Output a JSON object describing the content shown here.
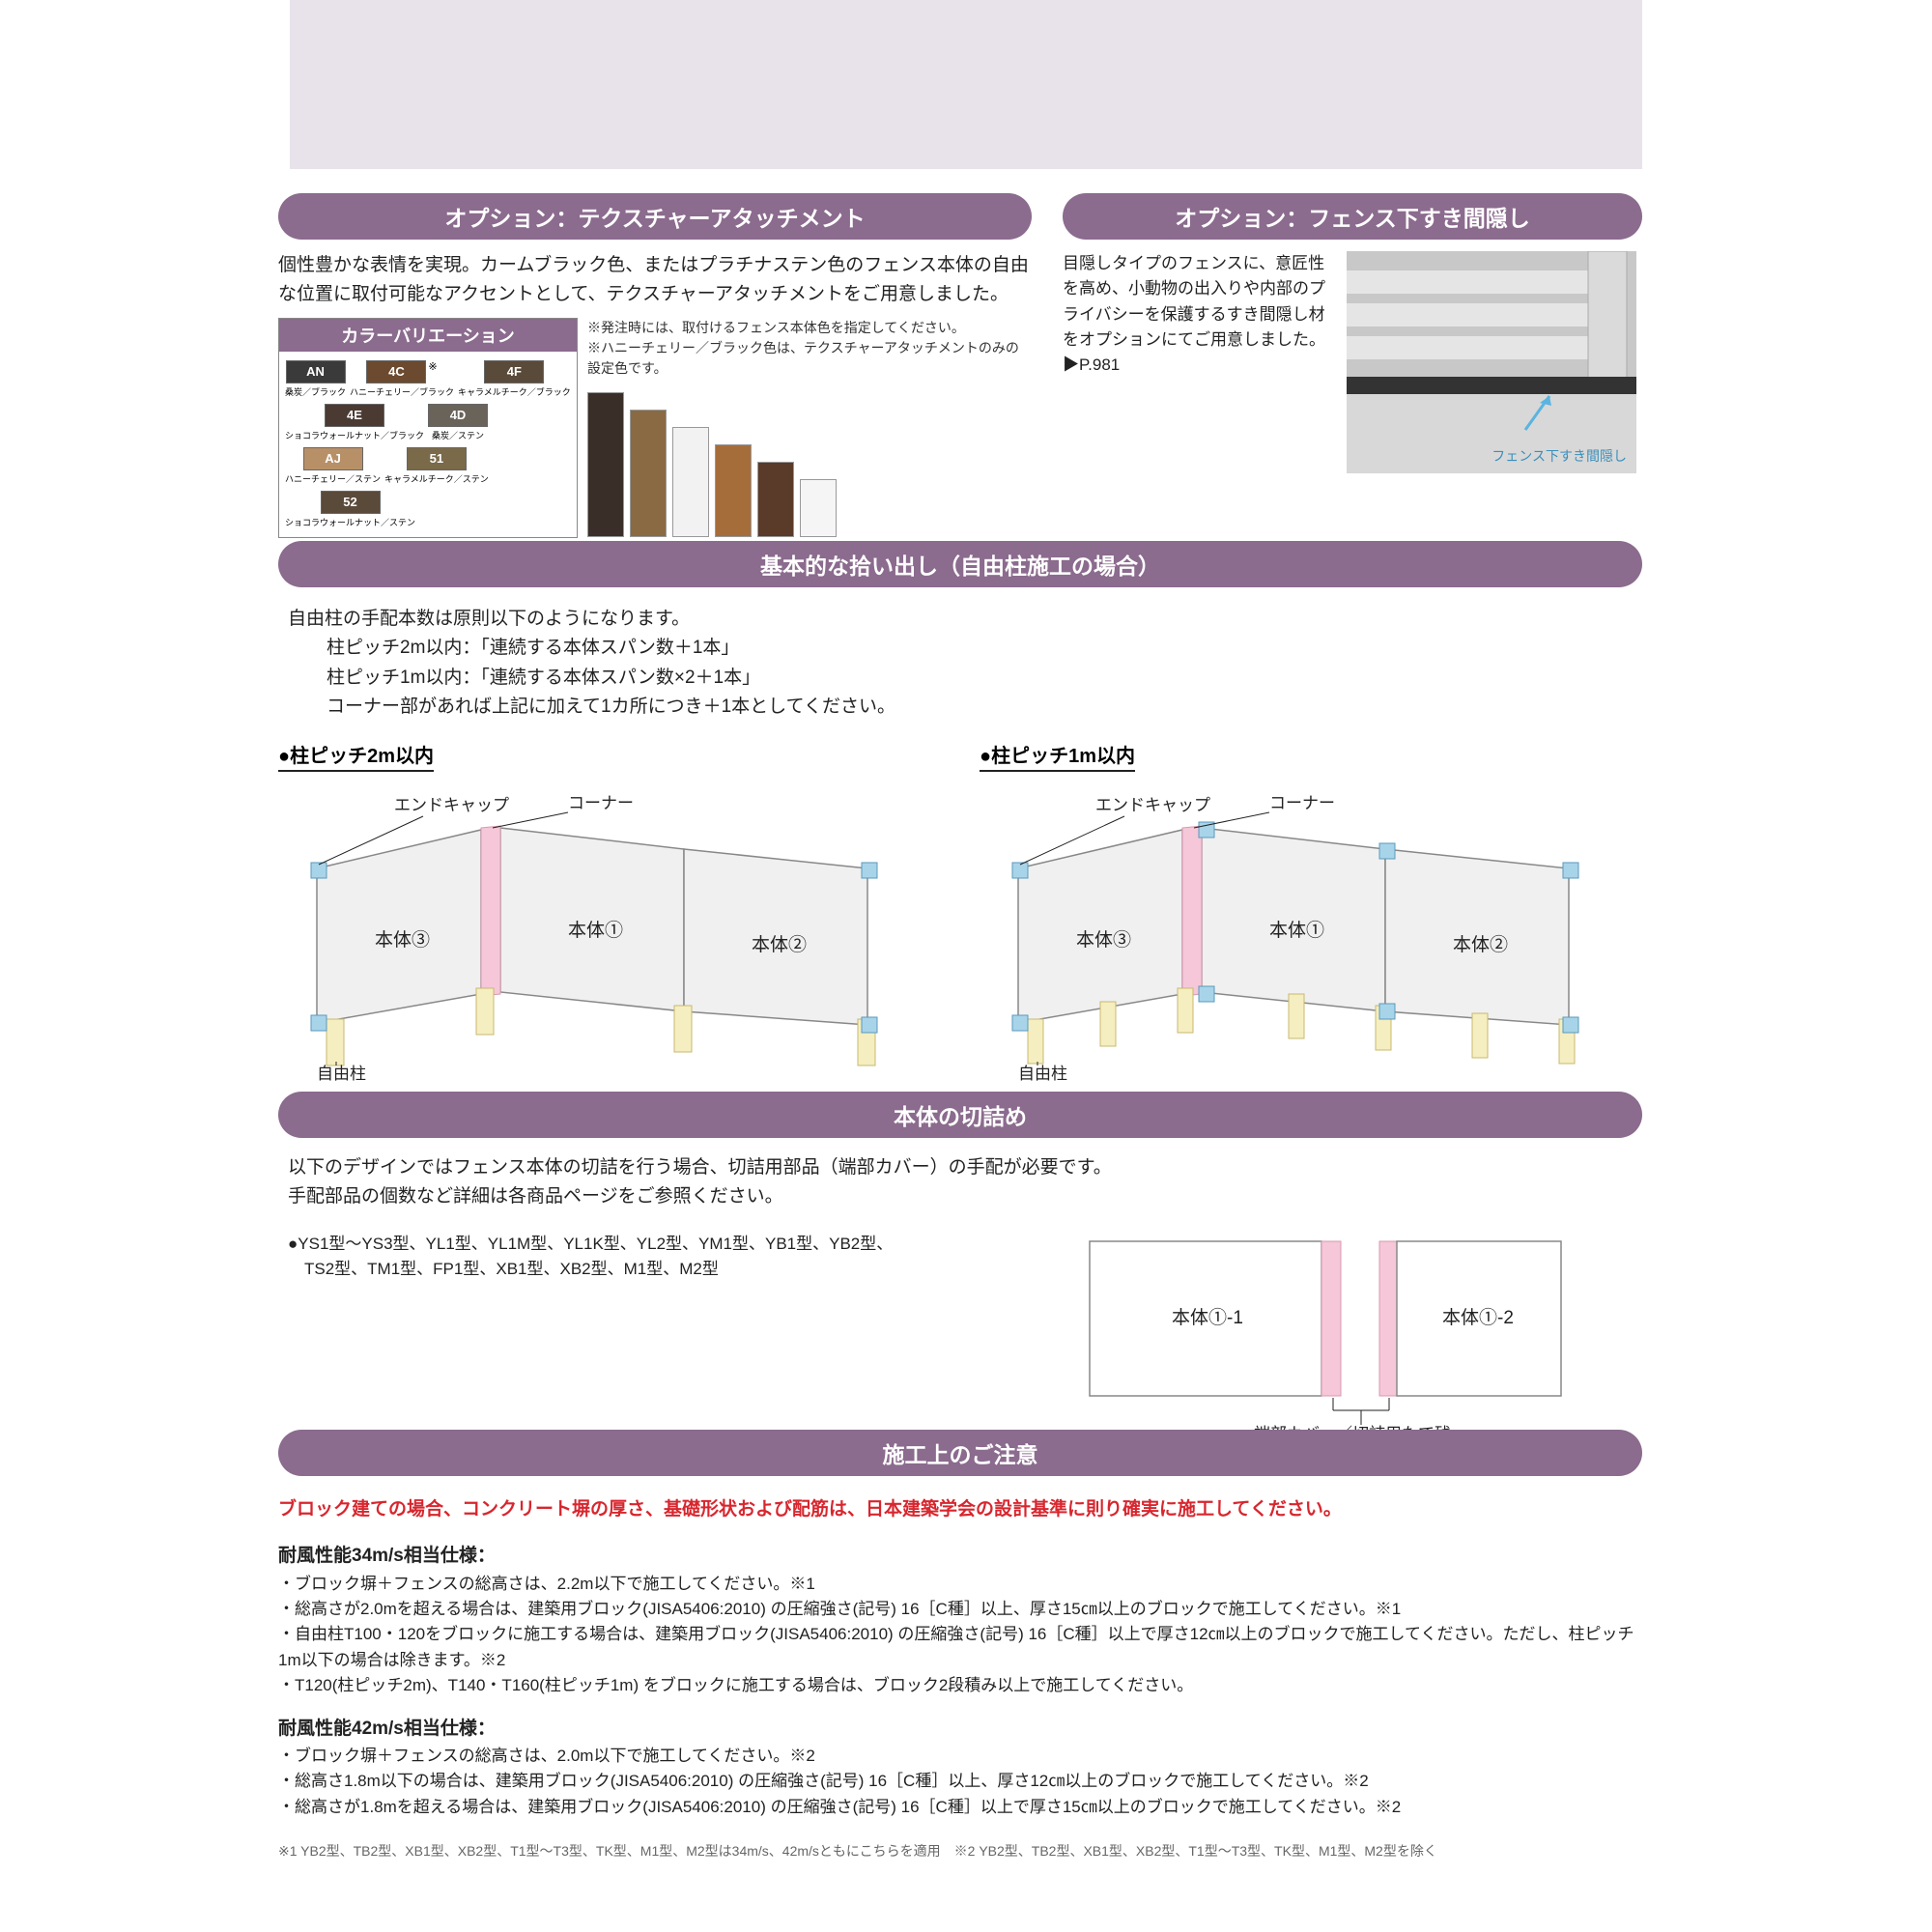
{
  "top_purple": "#e8e2ea",
  "pill_color": "#8b6b8e",
  "option1": {
    "title": "オプション：テクスチャーアタッチメント",
    "intro": "個性豊かな表情を実現。カームブラック色、またはプラチナステン色のフェンス本体の自由な位置に取付可能なアクセントとして、テクスチャーアタッチメントをご用意しました。",
    "color_header": "カラーバリエーション",
    "note1": "※発注時には、取付けるフェンス本体色を指定してください。",
    "note2": "※ハニーチェリー／ブラック色は、テクスチャーアタッチメントのみの設定色です。",
    "swatches": [
      {
        "code": "AN",
        "label": "桑炭／ブラック",
        "bg": "#3a3a3a"
      },
      {
        "code": "4C",
        "label": "ハニーチェリー／ブラック",
        "bg": "#6b4a2f",
        "star": "※"
      },
      {
        "code": "4F",
        "label": "キャラメルチーク／ブラック",
        "bg": "#5a4a3a"
      },
      {
        "code": "4E",
        "label": "ショコラウォールナット／ブラック",
        "bg": "#4a3a32"
      },
      {
        "code": "4D",
        "label": "桑炭／ステン",
        "bg": "#6a635a"
      },
      {
        "code": "AJ",
        "label": "ハニーチェリー／ステン",
        "bg": "#b89068"
      },
      {
        "code": "51",
        "label": "キャラメルチーク／ステン",
        "bg": "#7a6a4a"
      },
      {
        "code": "52",
        "label": "ショコラウォールナット／ステン",
        "bg": "#5a4a3a"
      }
    ],
    "wood_samples": [
      "#3a2f28",
      "#8a6a42",
      "#f2f2f2",
      "#a56d3a",
      "#5a3a28",
      "#f5f5f5"
    ]
  },
  "option2": {
    "title": "オプション：フェンス下すき間隠し",
    "intro": "目隠しタイプのフェンスに、意匠性を高め、小動物の出入りや内部のプライバシーを保護するすき間隠し材をオプションにてご用意しました。▶P.981",
    "arrow_label": "フェンス下すき間隠し",
    "arrow_color": "#5ab4e0"
  },
  "section_basic": {
    "title": "基本的な拾い出し（自由柱施工の場合）",
    "p1": "自由柱の手配本数は原則以下のようになります。",
    "p2": "柱ピッチ2m以内：「連続する本体スパン数＋1本」",
    "p3": "柱ピッチ1m以内：「連続する本体スパン数×2＋1本」",
    "p4": "コーナー部があれば上記に加えて1カ所につき＋1本としてください。",
    "diag_left_title": "●柱ピッチ2m以内",
    "diag_right_title": "●柱ピッチ1m以内",
    "lbl_endcap": "エンドキャップ",
    "lbl_corner": "コーナー",
    "lbl_body1": "本体①",
    "lbl_body2": "本体②",
    "lbl_body3": "本体③",
    "lbl_post": "自由柱",
    "colors": {
      "panel_fill": "#f0f0f0",
      "panel_stroke": "#888",
      "corner_fill": "#f5c7d8",
      "endcap_fill": "#a8d4ea",
      "post_fill": "#f5eec0",
      "post_stroke": "#c9b870"
    }
  },
  "section_cut": {
    "title": "本体の切詰め",
    "p1": "以下のデザインではフェンス本体の切詰を行う場合、切詰用部品（端部カバー）の手配が必要です。",
    "p2": "手配部品の個数など詳細は各商品ページをご参照ください。",
    "models": "●YS1型～YS3型、YL1型、YL1M型、YL1K型、YL2型、YM1型、YB1型、YB2型、\n　TS2型、TM1型、FP1型、XB1型、XB2型、M1型、M2型",
    "lbl_b1": "本体①-1",
    "lbl_b2": "本体①-2",
    "lbl_endcover": "端部カバー／切詰用たて残"
  },
  "section_caution": {
    "title": "施工上のご注意",
    "red_warning": "ブロック建ての場合、コンクリート塀の厚さ、基礎形状および配筋は、日本建築学会の設計基準に則り確実に施工してください。",
    "h34": "耐風性能34m/s相当仕様：",
    "lines34": [
      "・ブロック塀＋フェンスの総高さは、2.2m以下で施工してください。※1",
      "・総高さが2.0mを超える場合は、建築用ブロック(JISA5406:2010) の圧縮強さ(記号) 16［C種］以上、厚さ15㎝以上のブロックで施工してください。※1",
      "・自由柱T100・120をブロックに施工する場合は、建築用ブロック(JISA5406:2010) の圧縮強さ(記号) 16［C種］以上で厚さ12㎝以上のブロックで施工してください。ただし、柱ピッチ1m以下の場合は除きます。※2",
      "・T120(柱ピッチ2m)、T140・T160(柱ピッチ1m) をブロックに施工する場合は、ブロック2段積み以上で施工してください。"
    ],
    "h42": "耐風性能42m/s相当仕様：",
    "lines42": [
      "・ブロック塀＋フェンスの総高さは、2.0m以下で施工してください。※2",
      "・総高さ1.8m以下の場合は、建築用ブロック(JISA5406:2010) の圧縮強さ(記号) 16［C種］以上、厚さ12㎝以上のブロックで施工してください。※2",
      "・総高さが1.8mを超える場合は、建築用ブロック(JISA5406:2010) の圧縮強さ(記号) 16［C種］以上で厚さ15㎝以上のブロックで施工してください。※2"
    ],
    "footnote": "※1 YB2型、TB2型、XB1型、XB2型、T1型～T3型、TK型、M1型、M2型は34m/s、42m/sともにこちらを適用　※2 YB2型、TB2型、XB1型、XB2型、T1型～T3型、TK型、M1型、M2型を除く"
  }
}
